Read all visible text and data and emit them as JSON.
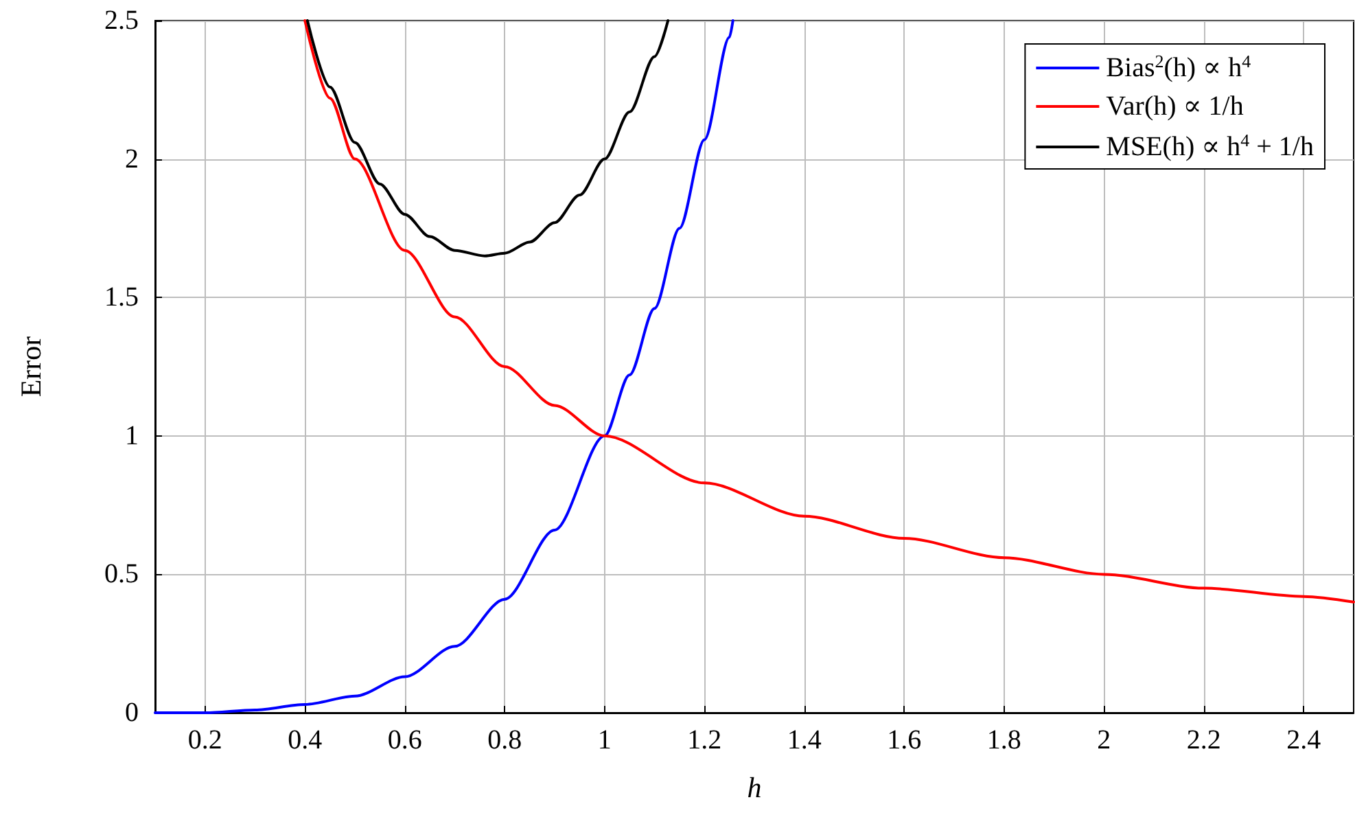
{
  "chart_data": {
    "type": "line",
    "xlabel": "h",
    "ylabel": "Error",
    "xlim": [
      0.1,
      2.5
    ],
    "ylim": [
      0,
      2.5
    ],
    "xticks": [
      0.2,
      0.4,
      0.6,
      0.8,
      1,
      1.2,
      1.4,
      1.6,
      1.8,
      2,
      2.2,
      2.4
    ],
    "yticks": [
      0,
      0.5,
      1,
      1.5,
      2,
      2.5
    ],
    "grid": true,
    "legend": "top right",
    "marker": "none",
    "line_style": "solid",
    "series": [
      {
        "name": "Bias$^{2}$(h) ∝ h$^{4}$",
        "color": "#0000ff",
        "x": [
          0.1,
          0.2,
          0.3,
          0.4,
          0.5,
          0.6,
          0.7,
          0.8,
          0.9,
          1,
          1.05,
          1.1,
          1.15,
          1.2,
          1.25,
          1.257
        ],
        "values": [
          0,
          0,
          0.01,
          0.03,
          0.06,
          0.13,
          0.24,
          0.41,
          0.66,
          1,
          1.22,
          1.46,
          1.75,
          2.07,
          2.44,
          2.5
        ]
      },
      {
        "name": "Var(h) ∝ 1/h",
        "color": "#ff0000",
        "x": [
          0.4,
          0.45,
          0.5,
          0.6,
          0.7,
          0.8,
          0.9,
          1,
          1.2,
          1.4,
          1.6,
          1.8,
          2,
          2.2,
          2.4,
          2.5
        ],
        "values": [
          2.5,
          2.22,
          2,
          1.67,
          1.43,
          1.25,
          1.11,
          1,
          0.83,
          0.71,
          0.63,
          0.56,
          0.5,
          0.45,
          0.42,
          0.4
        ]
      },
      {
        "name": "MSE(h) ∝ h$^{4}$ + 1/h",
        "color": "#000000",
        "x": [
          0.405,
          0.45,
          0.5,
          0.55,
          0.6,
          0.65,
          0.7,
          0.76,
          0.8,
          0.85,
          0.9,
          0.95,
          1,
          1.05,
          1.1,
          1.127
        ],
        "values": [
          2.5,
          2.26,
          2.06,
          1.91,
          1.8,
          1.72,
          1.67,
          1.65,
          1.66,
          1.7,
          1.77,
          1.87,
          2,
          2.17,
          2.37,
          2.5
        ]
      }
    ]
  }
}
